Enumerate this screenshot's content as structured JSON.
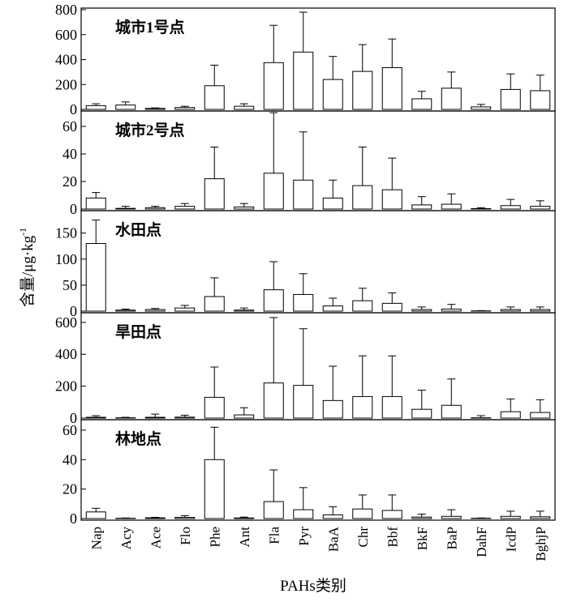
{
  "ylabel": "含量/μg·kg",
  "ylabel_sup": "-1",
  "xlabel": "PAHs类别",
  "chart_data": [
    {
      "type": "bar",
      "title": "城市1号点",
      "categories": [
        "Nap",
        "Acy",
        "Ace",
        "Flo",
        "Phe",
        "Ant",
        "Fla",
        "Pyr",
        "BaA",
        "Chr",
        "Bbf",
        "BkF",
        "BaP",
        "DahF",
        "IcdP",
        "BghjP"
      ],
      "values": [
        30,
        35,
        8,
        15,
        190,
        25,
        375,
        460,
        240,
        305,
        335,
        85,
        170,
        20,
        160,
        150
      ],
      "error_upper": [
        45,
        60,
        12,
        25,
        355,
        45,
        675,
        780,
        425,
        520,
        565,
        145,
        300,
        40,
        285,
        275
      ],
      "ylim": [
        0,
        800
      ],
      "yticks": [
        0,
        200,
        400,
        600,
        800
      ]
    },
    {
      "type": "bar",
      "title": "城市2号点",
      "categories": [
        "Nap",
        "Acy",
        "Ace",
        "Flo",
        "Phe",
        "Ant",
        "Fla",
        "Pyr",
        "BaA",
        "Chr",
        "Bbf",
        "BkF",
        "BaP",
        "DahF",
        "IcdP",
        "BghjP"
      ],
      "values": [
        8,
        0.5,
        1,
        2,
        22,
        1.5,
        26,
        21,
        8,
        17,
        14,
        3,
        3.5,
        0.3,
        2.5,
        2
      ],
      "error_upper": [
        12,
        2,
        2,
        4,
        45,
        4,
        70,
        56,
        21,
        45,
        37,
        9,
        11,
        1,
        7,
        6
      ],
      "ylim": [
        0,
        70
      ],
      "yticks": [
        0,
        20,
        40,
        60
      ]
    },
    {
      "type": "bar",
      "title": "水田点",
      "categories": [
        "Nap",
        "Acy",
        "Ace",
        "Flo",
        "Phe",
        "Ant",
        "Fla",
        "Pyr",
        "BaA",
        "Chr",
        "Bbf",
        "BkF",
        "BaP",
        "DahF",
        "IcdP",
        "BghjP"
      ],
      "values": [
        130,
        2,
        3,
        6,
        28,
        2,
        41,
        32,
        10,
        20,
        15,
        3,
        4,
        0.5,
        3,
        3
      ],
      "error_upper": [
        175,
        4,
        5,
        11,
        64,
        6,
        95,
        72,
        25,
        44,
        35,
        8,
        13,
        1,
        8,
        8
      ],
      "ylim": [
        0,
        190
      ],
      "yticks": [
        0,
        50,
        100,
        150
      ]
    },
    {
      "type": "bar",
      "title": "旱田点",
      "categories": [
        "Nap",
        "Acy",
        "Ace",
        "Flo",
        "Phe",
        "Ant",
        "Fla",
        "Pyr",
        "BaA",
        "Chr",
        "Bbf",
        "BkF",
        "BaP",
        "DahF",
        "IcdP",
        "BghjP"
      ],
      "values": [
        5,
        2,
        5,
        6,
        130,
        20,
        220,
        205,
        110,
        135,
        135,
        55,
        80,
        2,
        40,
        35
      ],
      "error_upper": [
        15,
        5,
        25,
        18,
        320,
        65,
        630,
        560,
        325,
        390,
        390,
        175,
        245,
        15,
        120,
        115
      ],
      "ylim": [
        0,
        650
      ],
      "yticks": [
        0,
        200,
        400,
        600
      ]
    },
    {
      "type": "bar",
      "title": "林地点",
      "categories": [
        "Nap",
        "Acy",
        "Ace",
        "Flo",
        "Phe",
        "Ant",
        "Fla",
        "Pyr",
        "BaA",
        "Chr",
        "Bbf",
        "BkF",
        "BaP",
        "DahF",
        "IcdP",
        "BghjP"
      ],
      "values": [
        4.5,
        0.2,
        0.5,
        0.8,
        40,
        0.4,
        11.5,
        6,
        2.5,
        6.5,
        5.5,
        1,
        1.5,
        0.2,
        1.5,
        1.2
      ],
      "error_upper": [
        7,
        0.4,
        0.8,
        2,
        62,
        1,
        33,
        21,
        8,
        16,
        16,
        3,
        6,
        0.4,
        5,
        5
      ],
      "ylim": [
        0,
        66
      ],
      "yticks": [
        0,
        20,
        40,
        60
      ]
    }
  ]
}
